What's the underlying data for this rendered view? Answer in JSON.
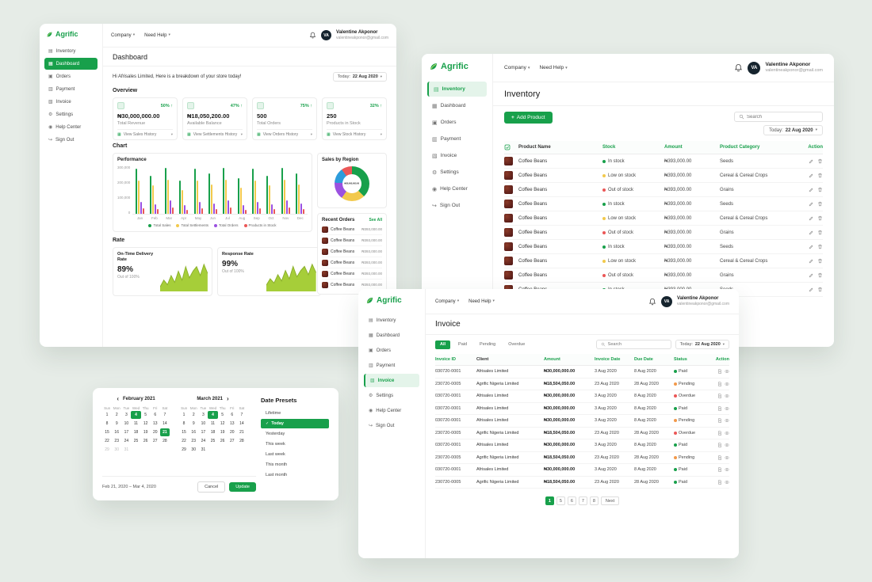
{
  "background": "#E6ECE7",
  "brand": {
    "name": "Agrific",
    "green": "#18A04B"
  },
  "topbar": {
    "company": "Company",
    "need_help": "Need Help"
  },
  "user": {
    "initials": "VA",
    "name": "Valentine Akponor",
    "email": "valentineakponor@gmail.com"
  },
  "date_filter": {
    "label": "Today:",
    "value": "22 Aug 2020"
  },
  "sidebar": {
    "items": [
      {
        "label": "Inventory",
        "icon": "inventory-icon",
        "glyph": "▤"
      },
      {
        "label": "Dashboard",
        "icon": "dashboard-icon",
        "glyph": "▦"
      },
      {
        "label": "Orders",
        "icon": "orders-icon",
        "glyph": "▣"
      },
      {
        "label": "Payment",
        "icon": "payment-icon",
        "glyph": "▥"
      },
      {
        "label": "Invoice",
        "icon": "invoice-icon",
        "glyph": "▧"
      },
      {
        "label": "Settings",
        "icon": "settings-icon",
        "glyph": "⚙"
      },
      {
        "label": "Help Center",
        "icon": "help-center-icon",
        "glyph": "◉"
      },
      {
        "label": "Sign Out",
        "icon": "sign-out-icon",
        "glyph": "↪"
      }
    ]
  },
  "dashboard": {
    "title": "Dashboard",
    "greeting": "Hi Afrisales Limited, Here is a breakdown of your store today!",
    "overview_title": "Overview",
    "stat_cards": [
      {
        "pct": "50%",
        "value": "₦30,000,000.00",
        "label": "Total Revenue",
        "footer": "View Sales History",
        "icon": "revenue-icon"
      },
      {
        "pct": "47%",
        "value": "₦18,050,200.00",
        "label": "Available Balance",
        "footer": "View Settlements History",
        "icon": "balance-icon"
      },
      {
        "pct": "75%",
        "value": "500",
        "label": "Total Orders",
        "footer": "View Orders History",
        "icon": "orders-stat-icon"
      },
      {
        "pct": "32%",
        "value": "250",
        "label": "Products in Stock",
        "footer": "View Stock History",
        "icon": "stock-icon"
      }
    ],
    "chart_title": "Chart",
    "performance": {
      "title": "Performance",
      "type": "bar",
      "categories": [
        "Jan",
        "Feb",
        "Mar",
        "Apr",
        "May",
        "Jun",
        "Jul",
        "Aug",
        "Sep",
        "Oct",
        "Nov",
        "Dec"
      ],
      "ymax": 300000,
      "yticks": [
        "300,000",
        "200,000",
        "100,000",
        "0"
      ],
      "series": [
        {
          "name": "Total Sales",
          "color": "#18A04B",
          "values": [
            285000,
            240000,
            290000,
            210000,
            285000,
            255000,
            290000,
            225000,
            285000,
            240000,
            290000,
            255000
          ]
        },
        {
          "name": "Total Settlements",
          "color": "#F2C94C",
          "values": [
            210000,
            180000,
            215000,
            150000,
            210000,
            186000,
            215000,
            165000,
            210000,
            180000,
            215000,
            186000
          ]
        },
        {
          "name": "Total Orders",
          "color": "#9B51E0",
          "values": [
            75000,
            60000,
            84000,
            54000,
            75000,
            66000,
            84000,
            54000,
            75000,
            60000,
            84000,
            66000
          ]
        },
        {
          "name": "Products in Stock",
          "color": "#EB5757",
          "values": [
            36000,
            30000,
            42000,
            24000,
            36000,
            30000,
            42000,
            24000,
            36000,
            30000,
            42000,
            30000
          ]
        }
      ]
    },
    "sales_by_region": {
      "title": "Sales by Region",
      "type": "pie",
      "center_label": "₦30,000,000.00",
      "segments": [
        {
          "color": "#18A04B",
          "value": 38
        },
        {
          "color": "#F2C94C",
          "value": 22
        },
        {
          "color": "#9B51E0",
          "value": 16
        },
        {
          "color": "#2D9CDB",
          "value": 14
        },
        {
          "color": "#EB5757",
          "value": 10
        }
      ]
    },
    "recent_orders": {
      "title": "Recent Orders",
      "see_all": "See All",
      "items": [
        {
          "name": "Coffee Beans",
          "amount": "₦393,000.00"
        },
        {
          "name": "Coffee Beans",
          "amount": "₦393,000.00"
        },
        {
          "name": "Coffee Beans",
          "amount": "₦393,000.00"
        },
        {
          "name": "Coffee Beans",
          "amount": "₦393,000.00"
        },
        {
          "name": "Coffee Beans",
          "amount": "₦393,000.00"
        },
        {
          "name": "Coffee Beans",
          "amount": "₦393,000.00"
        }
      ]
    },
    "rate_title": "Rate",
    "rates": [
      {
        "title": "On-Time Delivery Rate",
        "value": "89%",
        "caption": "Out of 100%",
        "color": "#A6CE39",
        "stroke": "#8CB02C",
        "points": [
          4,
          10,
          6,
          14,
          8,
          18,
          10,
          22,
          12,
          18,
          22,
          14,
          24,
          16
        ]
      },
      {
        "title": "Response Rate",
        "value": "99%",
        "caption": "Out of 100%",
        "color": "#A6CE39",
        "stroke": "#8CB02C",
        "points": [
          6,
          12,
          8,
          16,
          10,
          20,
          12,
          24,
          14,
          20,
          24,
          16,
          26,
          18
        ]
      }
    ]
  },
  "inventory": {
    "title": "Inventory",
    "add_button": "Add Product",
    "search_placeholder": "Search",
    "columns": [
      "Product Name",
      "Stock",
      "Amount",
      "Product Category",
      "Action"
    ],
    "rows": [
      {
        "product": "Coffee Beans",
        "stock": "In stock",
        "stock_color": "#18A04B",
        "amount": "₦393,000.00",
        "category": "Seeds"
      },
      {
        "product": "Coffee Beans",
        "stock": "Low on stock",
        "stock_color": "#F2C94C",
        "amount": "₦393,000.00",
        "category": "Cereal & Cereal Crops"
      },
      {
        "product": "Coffee Beans",
        "stock": "Out of stock",
        "stock_color": "#EB5757",
        "amount": "₦393,000.00",
        "category": "Grains"
      },
      {
        "product": "Coffee Beans",
        "stock": "In stock",
        "stock_color": "#18A04B",
        "amount": "₦393,000.00",
        "category": "Seeds"
      },
      {
        "product": "Coffee Beans",
        "stock": "Low on stock",
        "stock_color": "#F2C94C",
        "amount": "₦393,000.00",
        "category": "Cereal & Cereal Crops"
      },
      {
        "product": "Coffee Beans",
        "stock": "Out of stock",
        "stock_color": "#EB5757",
        "amount": "₦393,000.00",
        "category": "Grains"
      },
      {
        "product": "Coffee Beans",
        "stock": "In stock",
        "stock_color": "#18A04B",
        "amount": "₦393,000.00",
        "category": "Seeds"
      },
      {
        "product": "Coffee Beans",
        "stock": "Low on stock",
        "stock_color": "#F2C94C",
        "amount": "₦393,000.00",
        "category": "Cereal & Cereal Crops"
      },
      {
        "product": "Coffee Beans",
        "stock": "Out of stock",
        "stock_color": "#EB5757",
        "amount": "₦393,000.00",
        "category": "Grains"
      },
      {
        "product": "Coffee Beans",
        "stock": "In stock",
        "stock_color": "#18A04B",
        "amount": "₦393,000.00",
        "category": "Seeds"
      }
    ]
  },
  "invoice": {
    "title": "Invoice",
    "filters": [
      {
        "label": "All",
        "active": true
      },
      {
        "label": "Paid",
        "active": false
      },
      {
        "label": "Pending",
        "active": false
      },
      {
        "label": "Overdue",
        "active": false
      }
    ],
    "search_placeholder": "Search",
    "columns": [
      "Invoice ID",
      "Client",
      "Amount",
      "Invoice Date",
      "Due Date",
      "Status",
      "Action"
    ],
    "rows": [
      {
        "id": "030720-0001",
        "client": "Afrisales Limited",
        "amount": "₦30,000,000.00",
        "invoice_date": "3 Aug 2020",
        "due_date": "8 Aug 2020",
        "status": "Paid",
        "status_color": "#18A04B"
      },
      {
        "id": "230720-0005",
        "client": "Agrific Nigeria Limited",
        "amount": "₦18,504,050.00",
        "invoice_date": "23 Aug 2020",
        "due_date": "28 Aug 2020",
        "status": "Pending",
        "status_color": "#F2994A"
      },
      {
        "id": "030720-0001",
        "client": "Afrisales Limited",
        "amount": "₦30,000,000.00",
        "invoice_date": "3 Aug 2020",
        "due_date": "8 Aug 2020",
        "status": "Overdue",
        "status_color": "#EB5757"
      },
      {
        "id": "030720-0001",
        "client": "Afrisales Limited",
        "amount": "₦30,000,000.00",
        "invoice_date": "3 Aug 2020",
        "due_date": "8 Aug 2020",
        "status": "Paid",
        "status_color": "#18A04B"
      },
      {
        "id": "030720-0001",
        "client": "Afrisales Limited",
        "amount": "₦30,000,000.00",
        "invoice_date": "3 Aug 2020",
        "due_date": "8 Aug 2020",
        "status": "Pending",
        "status_color": "#F2994A"
      },
      {
        "id": "230720-0005",
        "client": "Agrific Nigeria Limited",
        "amount": "₦18,504,050.00",
        "invoice_date": "23 Aug 2020",
        "due_date": "28 Aug 2020",
        "status": "Overdue",
        "status_color": "#EB5757"
      },
      {
        "id": "030720-0001",
        "client": "Afrisales Limited",
        "amount": "₦30,000,000.00",
        "invoice_date": "3 Aug 2020",
        "due_date": "8 Aug 2020",
        "status": "Paid",
        "status_color": "#18A04B"
      },
      {
        "id": "230720-0005",
        "client": "Agrific Nigeria Limited",
        "amount": "₦18,504,050.00",
        "invoice_date": "23 Aug 2020",
        "due_date": "28 Aug 2020",
        "status": "Pending",
        "status_color": "#F2994A"
      },
      {
        "id": "030720-0001",
        "client": "Afrisales Limited",
        "amount": "₦30,000,000.00",
        "invoice_date": "3 Aug 2020",
        "due_date": "8 Aug 2020",
        "status": "Paid",
        "status_color": "#18A04B"
      },
      {
        "id": "230720-0005",
        "client": "Agrific Nigeria Limited",
        "amount": "₦18,504,050.00",
        "invoice_date": "23 Aug 2020",
        "due_date": "28 Aug 2020",
        "status": "Paid",
        "status_color": "#18A04B"
      }
    ],
    "pagination": {
      "pages": [
        "1",
        "5",
        "6",
        "7",
        "8"
      ],
      "active": "1",
      "next": "Next"
    }
  },
  "datepicker": {
    "calendars": [
      {
        "title": "February 2021",
        "nav": "prev",
        "days": [
          "Sun",
          "Mon",
          "Tue",
          "Wed",
          "Thu",
          "Fri",
          "Sat"
        ],
        "weeks": [
          [
            1,
            2,
            3,
            4,
            5,
            6,
            7
          ],
          [
            8,
            9,
            10,
            11,
            12,
            13,
            14
          ],
          [
            15,
            16,
            17,
            18,
            19,
            20,
            21
          ],
          [
            22,
            23,
            24,
            25,
            26,
            27,
            28
          ],
          [
            29,
            30,
            31
          ]
        ],
        "highlights": [
          4,
          21
        ],
        "muted": [
          29,
          30,
          31
        ]
      },
      {
        "title": "March 2021",
        "nav": "next",
        "days": [
          "Sun",
          "Mon",
          "Tue",
          "Wed",
          "Thu",
          "Fri",
          "Sat"
        ],
        "weeks": [
          [
            1,
            2,
            3,
            4,
            5,
            6,
            7
          ],
          [
            8,
            9,
            10,
            11,
            12,
            13,
            14
          ],
          [
            15,
            16,
            17,
            18,
            19,
            20,
            21
          ],
          [
            22,
            23,
            24,
            25,
            26,
            27,
            28
          ],
          [
            29,
            30,
            31
          ]
        ],
        "highlights": [
          4
        ],
        "muted": []
      }
    ],
    "presets": {
      "title": "Date Presets",
      "items": [
        "Lifetime",
        "Today",
        "Yesterday",
        "This week",
        "Last week",
        "This month",
        "Last month"
      ],
      "selected": "Today"
    },
    "range_label": "Feb 21, 2020 – Mar 4, 2020",
    "cancel": "Cancel",
    "update": "Update"
  }
}
